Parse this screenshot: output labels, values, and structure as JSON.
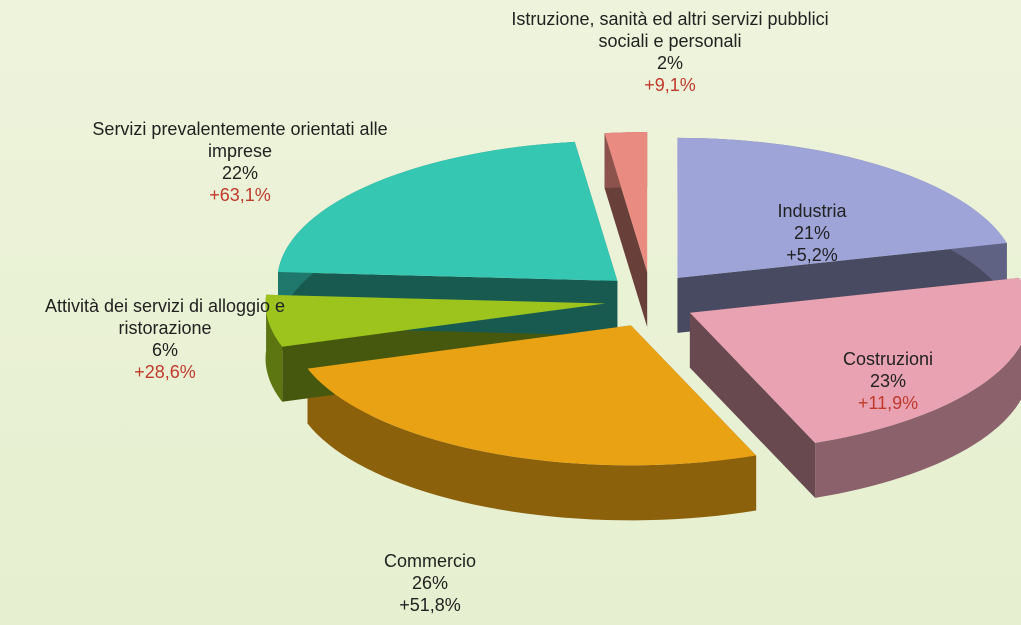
{
  "chart_data": {
    "type": "pie",
    "categories": [
      "Industria",
      "Costruzioni",
      "Commercio",
      "Attività dei servizi di alloggio e ristorazione",
      "Servizi prevalentemente orientati alle imprese",
      "Istruzione, sanità ed altri servizi pubblici sociali e personali"
    ],
    "values": [
      21,
      23,
      26,
      6,
      22,
      2
    ],
    "value_labels": [
      "21%",
      "23%",
      "26%",
      "6%",
      "22%",
      "2%"
    ],
    "colors": [
      "#9ea4d8",
      "#e8a2b2",
      "#e8a214",
      "#9cc41c",
      "#35c7b2",
      "#e98b80"
    ],
    "changes": {
      "values": [
        5.2,
        11.9,
        51.8,
        28.6,
        63.1,
        9.1
      ],
      "value_labels": [
        "+5,2%",
        "+11,9%",
        "+51,8%",
        "+28,6%",
        "+63,1%",
        "+9,1%"
      ],
      "colors": [
        "#222222",
        "#c0392b",
        "#222222",
        "#c0392b",
        "#c0392b",
        "#c0392b"
      ]
    }
  }
}
